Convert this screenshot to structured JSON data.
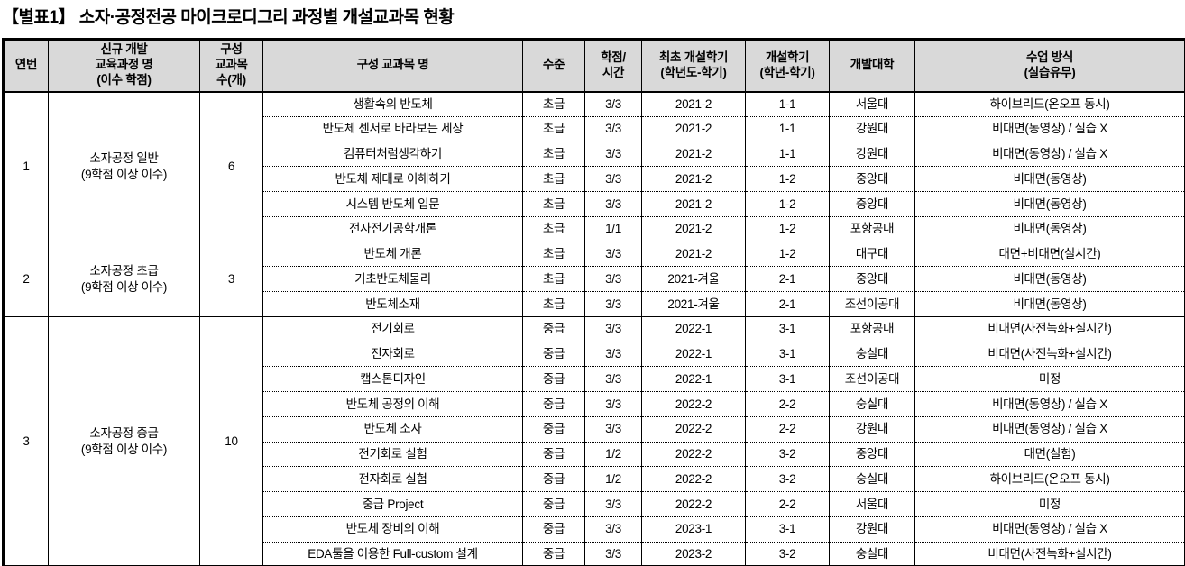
{
  "page_title": "【별표1】 소자·공정전공 마이크로디그리 과정별 개설교과목 현황",
  "colors": {
    "header_bg": "#d9d9d9",
    "border": "#000000",
    "text": "#000000",
    "page_bg": "#ffffff"
  },
  "table": {
    "columns": [
      {
        "key": "no",
        "label": "연번"
      },
      {
        "key": "program",
        "label": "신규 개발\n교육과정 명\n(이수 학점)"
      },
      {
        "key": "count",
        "label": "구성\n교과목\n수(개)"
      },
      {
        "key": "course",
        "label": "구성 교과목 명"
      },
      {
        "key": "level",
        "label": "수준"
      },
      {
        "key": "credits",
        "label": "학점/\n시간"
      },
      {
        "key": "first-term",
        "label": "최초 개설학기\n(학년도-학기)"
      },
      {
        "key": "term",
        "label": "개설학기\n(학년-학기)"
      },
      {
        "key": "university",
        "label": "개발대학"
      },
      {
        "key": "method",
        "label": "수업 방식\n(실습유무)"
      }
    ],
    "groups": [
      {
        "no": "1",
        "program": "소자공정 일반\n(9학점 이상 이수)",
        "count": "6",
        "courses": [
          {
            "name": "생활속의 반도체",
            "level": "초급",
            "credits": "3/3",
            "first_term": "2021-2",
            "term": "1-1",
            "university": "서울대",
            "method": "하이브리드(온오프 동시)"
          },
          {
            "name": "반도체 센서로 바라보는 세상",
            "level": "초급",
            "credits": "3/3",
            "first_term": "2021-2",
            "term": "1-1",
            "university": "강원대",
            "method": "비대면(동영상) / 실습 X"
          },
          {
            "name": "컴퓨터처럼생각하기",
            "level": "초급",
            "credits": "3/3",
            "first_term": "2021-2",
            "term": "1-1",
            "university": "강원대",
            "method": "비대면(동영상) / 실습 X"
          },
          {
            "name": "반도체 제대로 이해하기",
            "level": "초급",
            "credits": "3/3",
            "first_term": "2021-2",
            "term": "1-2",
            "university": "중앙대",
            "method": "비대면(동영상)"
          },
          {
            "name": "시스템 반도체 입문",
            "level": "초급",
            "credits": "3/3",
            "first_term": "2021-2",
            "term": "1-2",
            "university": "중앙대",
            "method": "비대면(동영상)"
          },
          {
            "name": "전자전기공학개론",
            "level": "초급",
            "credits": "1/1",
            "first_term": "2021-2",
            "term": "1-2",
            "university": "포항공대",
            "method": "비대면(동영상)"
          }
        ]
      },
      {
        "no": "2",
        "program": "소자공정 초급\n(9학점 이상 이수)",
        "count": "3",
        "courses": [
          {
            "name": "반도체 개론",
            "level": "초급",
            "credits": "3/3",
            "first_term": "2021-2",
            "term": "1-2",
            "university": "대구대",
            "method": "대면+비대면(실시간)"
          },
          {
            "name": "기초반도체물리",
            "level": "초급",
            "credits": "3/3",
            "first_term": "2021-겨울",
            "term": "2-1",
            "university": "중앙대",
            "method": "비대면(동영상)"
          },
          {
            "name": "반도체소재",
            "level": "초급",
            "credits": "3/3",
            "first_term": "2021-겨울",
            "term": "2-1",
            "university": "조선이공대",
            "method": "비대면(동영상)"
          }
        ]
      },
      {
        "no": "3",
        "program": "소자공정 중급\n(9학점 이상 이수)",
        "count": "10",
        "courses": [
          {
            "name": "전기회로",
            "level": "중급",
            "credits": "3/3",
            "first_term": "2022-1",
            "term": "3-1",
            "university": "포항공대",
            "method": "비대면(사전녹화+실시간)"
          },
          {
            "name": "전자회로",
            "level": "중급",
            "credits": "3/3",
            "first_term": "2022-1",
            "term": "3-1",
            "university": "숭실대",
            "method": "비대면(사전녹화+실시간)"
          },
          {
            "name": "캡스톤디자인",
            "level": "중급",
            "credits": "3/3",
            "first_term": "2022-1",
            "term": "3-1",
            "university": "조선이공대",
            "method": "미정"
          },
          {
            "name": "반도체 공정의 이해",
            "level": "중급",
            "credits": "3/3",
            "first_term": "2022-2",
            "term": "2-2",
            "university": "숭실대",
            "method": "비대면(동영상) / 실습 X"
          },
          {
            "name": "반도체 소자",
            "level": "중급",
            "credits": "3/3",
            "first_term": "2022-2",
            "term": "2-2",
            "university": "강원대",
            "method": "비대면(동영상) / 실습 X"
          },
          {
            "name": "전기회로 실험",
            "level": "중급",
            "credits": "1/2",
            "first_term": "2022-2",
            "term": "3-2",
            "university": "중앙대",
            "method": "대면(실험)"
          },
          {
            "name": "전자회로 실험",
            "level": "중급",
            "credits": "1/2",
            "first_term": "2022-2",
            "term": "3-2",
            "university": "숭실대",
            "method": "하이브리드(온오프 동시)"
          },
          {
            "name": "중급 Project",
            "level": "중급",
            "credits": "3/3",
            "first_term": "2022-2",
            "term": "2-2",
            "university": "서울대",
            "method": "미정"
          },
          {
            "name": "반도체 장비의 이해",
            "level": "중급",
            "credits": "3/3",
            "first_term": "2023-1",
            "term": "3-1",
            "university": "강원대",
            "method": "비대면(동영상) / 실습 X"
          },
          {
            "name": "EDA툴을 이용한 Full-custom 설계",
            "level": "중급",
            "credits": "3/3",
            "first_term": "2023-2",
            "term": "3-2",
            "university": "숭실대",
            "method": "비대면(사전녹화+실시간)"
          }
        ]
      }
    ]
  }
}
